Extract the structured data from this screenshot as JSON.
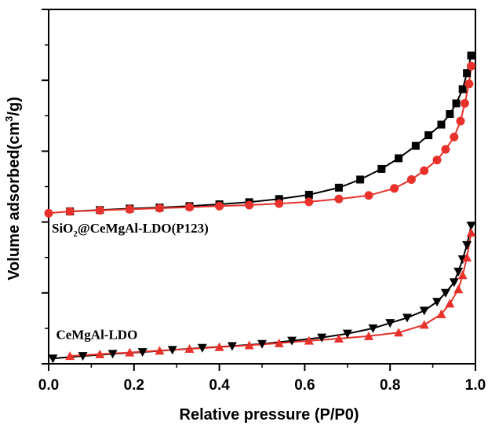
{
  "chart_data": {
    "type": "scatter",
    "xlabel": "Relative pressure (P/P0)",
    "ylabel_prefix": "Volume adsorbed(cm",
    "ylabel_sup": "3",
    "ylabel_suffix": "/g)",
    "xlim": [
      0.0,
      1.0
    ],
    "ylim": [
      0,
      100
    ],
    "x_ticks": [
      "0.0",
      "0.2",
      "0.4",
      "0.6",
      "0.8",
      "1.0"
    ],
    "y_ticklabels_shown": false,
    "grid": false,
    "legend": "none",
    "annotations": [
      {
        "id": "sio2",
        "label_prefix": "SiO",
        "label_sub": "2",
        "label_suffix": "@CeMgAl-LDO(P123)",
        "at": [
          0.0,
          37.0
        ]
      },
      {
        "id": "cemgal",
        "label": "CeMgAl-LDO",
        "at": [
          0.01,
          7.0
        ]
      }
    ],
    "series": [
      {
        "group": "SiO2@CeMgAl-LDO(P123)",
        "branch": "desorption",
        "marker": "square",
        "color": "#000000",
        "x": [
          0.05,
          0.12,
          0.19,
          0.26,
          0.33,
          0.4,
          0.47,
          0.54,
          0.61,
          0.68,
          0.73,
          0.78,
          0.82,
          0.86,
          0.89,
          0.92,
          0.94,
          0.955,
          0.97,
          0.98,
          0.99
        ],
        "y": [
          43.0,
          43.4,
          43.8,
          44.1,
          44.5,
          45.0,
          45.6,
          46.5,
          47.7,
          49.7,
          52.0,
          55.0,
          58.0,
          61.5,
          64.5,
          67.5,
          70.5,
          73.5,
          77.5,
          82.0,
          87.0
        ]
      },
      {
        "group": "SiO2@CeMgAl-LDO(P123)",
        "branch": "adsorption",
        "marker": "circle",
        "color": "#e8312a",
        "x": [
          0.0,
          0.05,
          0.12,
          0.19,
          0.26,
          0.33,
          0.4,
          0.47,
          0.54,
          0.61,
          0.68,
          0.75,
          0.81,
          0.85,
          0.88,
          0.91,
          0.93,
          0.95,
          0.965,
          0.975,
          0.985,
          0.99
        ],
        "y": [
          42.5,
          43.0,
          43.3,
          43.6,
          43.9,
          44.2,
          44.5,
          44.8,
          45.2,
          45.7,
          46.5,
          47.5,
          49.5,
          52.0,
          54.5,
          57.5,
          60.5,
          64.0,
          68.5,
          73.5,
          79.0,
          84.0
        ]
      },
      {
        "group": "CeMgAl-LDO",
        "branch": "desorption",
        "marker": "triangle-down",
        "color": "#000000",
        "x": [
          0.01,
          0.08,
          0.15,
          0.22,
          0.29,
          0.36,
          0.43,
          0.5,
          0.57,
          0.64,
          0.7,
          0.76,
          0.8,
          0.84,
          0.88,
          0.91,
          0.93,
          0.95,
          0.96,
          0.97,
          0.98,
          0.99
        ],
        "y": [
          1.5,
          2.2,
          2.8,
          3.3,
          3.9,
          4.5,
          5.0,
          5.6,
          6.5,
          7.4,
          8.5,
          10.0,
          11.5,
          13.0,
          15.0,
          17.5,
          20.0,
          23.0,
          26.0,
          29.5,
          33.5,
          39.0
        ]
      },
      {
        "group": "CeMgAl-LDO",
        "branch": "adsorption",
        "marker": "triangle-up",
        "color": "#e8312a",
        "x": [
          0.05,
          0.12,
          0.19,
          0.26,
          0.33,
          0.4,
          0.47,
          0.54,
          0.61,
          0.68,
          0.75,
          0.82,
          0.88,
          0.92,
          0.94,
          0.96,
          0.97,
          0.98,
          0.99
        ],
        "y": [
          2.2,
          2.7,
          3.2,
          3.7,
          4.2,
          4.7,
          5.2,
          5.8,
          6.5,
          7.1,
          7.8,
          8.8,
          11.0,
          14.0,
          17.0,
          21.0,
          25.0,
          30.0,
          37.0
        ]
      }
    ]
  }
}
